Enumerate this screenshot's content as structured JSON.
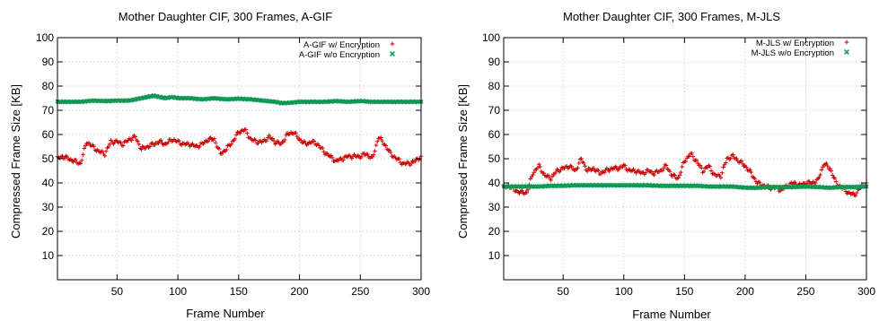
{
  "chart_data": [
    {
      "type": "scatter",
      "title": "Mother Daughter CIF, 300 Frames, A-GIF",
      "xlabel": "Frame Number",
      "ylabel": "Compressed Frame Size [KB]",
      "xlim": [
        1,
        300
      ],
      "ylim": [
        0,
        100
      ],
      "xticks": [
        50,
        100,
        150,
        200,
        250,
        300
      ],
      "yticks": [
        10,
        20,
        30,
        40,
        50,
        60,
        70,
        80,
        90,
        100
      ],
      "grid": "dotted",
      "legend_position": "top-right",
      "series": [
        {
          "name": "A-GIF w/ Encryption",
          "color": "#cc0000",
          "marker": "plus",
          "x": [
            1,
            5,
            10,
            15,
            20,
            25,
            30,
            35,
            40,
            45,
            50,
            55,
            60,
            65,
            70,
            75,
            80,
            85,
            90,
            95,
            100,
            105,
            110,
            115,
            120,
            125,
            130,
            135,
            140,
            145,
            150,
            155,
            160,
            165,
            170,
            175,
            180,
            185,
            190,
            195,
            200,
            205,
            210,
            215,
            220,
            225,
            230,
            235,
            240,
            245,
            250,
            255,
            260,
            265,
            270,
            275,
            280,
            285,
            290,
            295,
            300
          ],
          "y": [
            50,
            51,
            50,
            49,
            48,
            57,
            55,
            53,
            52,
            57,
            57,
            56,
            58,
            59,
            54,
            55,
            56,
            57,
            56,
            58,
            57,
            56,
            56,
            55,
            56,
            58,
            58,
            52,
            54,
            57,
            61,
            62,
            58,
            57,
            57,
            59,
            57,
            56,
            60,
            61,
            58,
            56,
            57,
            56,
            53,
            51,
            49,
            50,
            51,
            51,
            51,
            52,
            50,
            59,
            56,
            52,
            50,
            48,
            48,
            49,
            51
          ]
        },
        {
          "name": "A-GIF w/o Encryption",
          "color": "#119955",
          "marker": "cross",
          "x": [
            1,
            10,
            20,
            30,
            40,
            50,
            60,
            65,
            70,
            75,
            80,
            85,
            90,
            95,
            100,
            110,
            120,
            130,
            140,
            150,
            160,
            170,
            180,
            185,
            190,
            200,
            210,
            220,
            230,
            240,
            250,
            260,
            270,
            280,
            290,
            300
          ],
          "y": [
            73.5,
            73.5,
            73.5,
            74,
            73.8,
            74,
            74,
            74.5,
            75,
            75.5,
            76,
            75.5,
            75,
            75.5,
            75,
            75,
            74.5,
            75,
            74.5,
            74.8,
            74.5,
            74,
            73.5,
            73,
            73,
            73.5,
            73.5,
            73.5,
            73.8,
            73.5,
            73.8,
            73.5,
            73.5,
            73.5,
            73.5,
            73.5
          ]
        }
      ]
    },
    {
      "type": "scatter",
      "title": "Mother Daughter CIF, 300 Frames, M-JLS",
      "xlabel": "Frame Number",
      "ylabel": "Compressed Frame Size [KB]",
      "xlim": [
        1,
        300
      ],
      "ylim": [
        0,
        100
      ],
      "xticks": [
        50,
        100,
        150,
        200,
        250,
        300
      ],
      "yticks": [
        10,
        20,
        30,
        40,
        50,
        60,
        70,
        80,
        90,
        100
      ],
      "grid": "dotted",
      "legend_position": "top-right",
      "series": [
        {
          "name": "M-JLS w/ Encryption",
          "color": "#cc0000",
          "marker": "plus",
          "x": [
            1,
            5,
            10,
            15,
            20,
            25,
            30,
            35,
            40,
            45,
            50,
            55,
            60,
            65,
            70,
            75,
            80,
            85,
            90,
            95,
            100,
            105,
            110,
            115,
            120,
            125,
            130,
            135,
            140,
            145,
            150,
            155,
            160,
            165,
            170,
            175,
            180,
            185,
            190,
            195,
            200,
            205,
            210,
            215,
            220,
            225,
            230,
            235,
            240,
            245,
            250,
            255,
            260,
            265,
            270,
            275,
            280,
            285,
            290,
            295,
            300
          ],
          "y": [
            38,
            39,
            37,
            36,
            36,
            44,
            47,
            43,
            42,
            45,
            46,
            47,
            45,
            50,
            45,
            46,
            44,
            45,
            46,
            46,
            47,
            45,
            45,
            44,
            45,
            44,
            45,
            47,
            43,
            42,
            49,
            52,
            49,
            45,
            47,
            43,
            43,
            50,
            51,
            49,
            47,
            44,
            40,
            39,
            38,
            38,
            37,
            39,
            40,
            39,
            40,
            40,
            41,
            48,
            46,
            40,
            38,
            36,
            35,
            38,
            40
          ]
        },
        {
          "name": "M-JLS w/o Encryption",
          "color": "#119955",
          "marker": "cross",
          "x": [
            1,
            10,
            20,
            30,
            40,
            50,
            60,
            70,
            80,
            90,
            100,
            110,
            120,
            130,
            140,
            150,
            160,
            170,
            180,
            190,
            200,
            210,
            220,
            230,
            240,
            250,
            260,
            270,
            280,
            290,
            300
          ],
          "y": [
            38.5,
            38.5,
            38.5,
            38.5,
            38.8,
            38.8,
            39,
            39,
            39,
            39,
            39,
            39,
            39,
            38.8,
            38.8,
            38.8,
            38.8,
            38.5,
            38.5,
            38.5,
            38,
            38,
            38.3,
            38.3,
            38.3,
            38.5,
            38.3,
            38,
            38.3,
            38.3,
            38.5
          ]
        }
      ]
    }
  ]
}
